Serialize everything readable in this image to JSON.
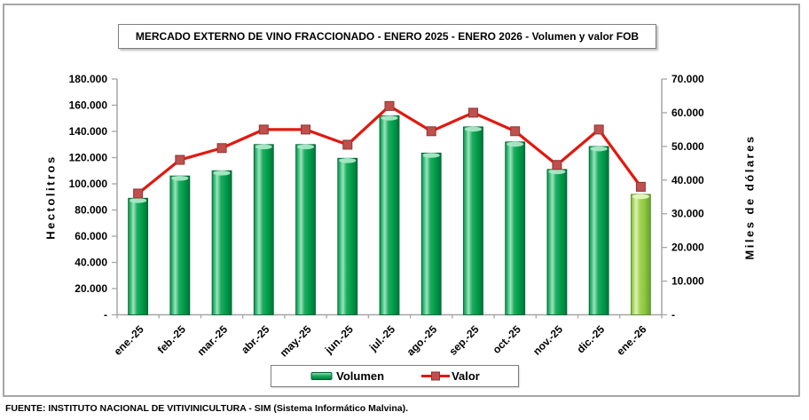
{
  "footer": {
    "source": "FUENTE: INSTITUTO NACIONAL DE VITIVINICULTURA - SIM (Sistema Informático Malvina)."
  },
  "chart_data": {
    "type": "bar",
    "subtype": "bar-line-combo",
    "title": "MERCADO EXTERNO DE VINO FRACCIONADO - ENERO 2025 - ENERO 2026 - Volumen y valor FOB",
    "categories": [
      "ene.-25",
      "feb.-25",
      "mar.-25",
      "abr.-25",
      "may.-25",
      "jun.-25",
      "jul.-25",
      "ago.-25",
      "sep.-25",
      "oct.-25",
      "nov.-25",
      "dic.-25",
      "ene.-26"
    ],
    "series": [
      {
        "name": "Volumen",
        "type": "bar",
        "axis": "left",
        "highlight_last": true,
        "values": [
          89000,
          106000,
          110000,
          130000,
          130000,
          119500,
          152000,
          123500,
          143500,
          132000,
          111000,
          128500,
          92000
        ]
      },
      {
        "name": "Valor",
        "type": "line",
        "axis": "right",
        "values": [
          36000,
          46000,
          49500,
          55000,
          55000,
          50500,
          62000,
          54500,
          60000,
          54500,
          44500,
          55000,
          38000
        ]
      }
    ],
    "axes": {
      "left": {
        "title": "Hectolitros",
        "min": 0,
        "max": 180000,
        "step": 20000,
        "tick_labels": [
          "180.000",
          "160.000",
          "140.000",
          "120.000",
          "100.000",
          "80.000",
          "60.000",
          "40.000",
          "20.000",
          "-"
        ]
      },
      "right": {
        "title": "Miles de dólares",
        "min": 0,
        "max": 70000,
        "step": 10000,
        "tick_labels": [
          "70.000",
          "60.000",
          "50.000",
          "40.000",
          "30.000",
          "20.000",
          "10.000",
          "-"
        ]
      }
    },
    "legend": {
      "position": "bottom"
    },
    "grid": "off",
    "colors": {
      "volumen_bar": "#00A04C",
      "volumen_last_bar": "#92D050",
      "valor_line": "#E2180E",
      "valor_marker": "#C0504D",
      "axis_line": "#A6A6A6"
    }
  }
}
